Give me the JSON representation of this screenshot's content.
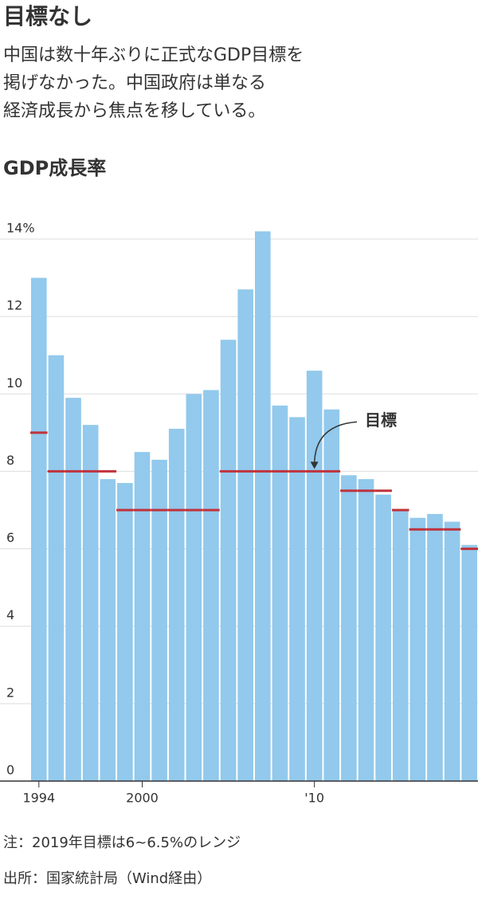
{
  "chart_data": {
    "type": "bar",
    "title": "目標なし",
    "subtitle": [
      "中国は数十年ぶりに正式なGDP目標を",
      "掲げなかった。中国政府は単なる",
      "経済成長から焦点を移している。"
    ],
    "chart_title": "GDP成長率",
    "annotation": "目標",
    "categories": [
      "1994",
      null,
      null,
      null,
      null,
      null,
      "2000",
      null,
      null,
      null,
      null,
      null,
      null,
      null,
      null,
      null,
      "'10",
      null,
      null,
      null,
      null,
      null,
      null,
      null,
      null,
      null
    ],
    "values": [
      13.0,
      11.0,
      9.9,
      9.2,
      7.8,
      7.7,
      8.5,
      8.3,
      9.1,
      10.0,
      10.1,
      11.4,
      12.7,
      14.2,
      9.7,
      9.4,
      10.6,
      9.6,
      7.9,
      7.8,
      7.4,
      7.0,
      6.8,
      6.9,
      6.7,
      6.1
    ],
    "color": "#92c9ec",
    "target_values": [
      9,
      8,
      8,
      8,
      8,
      7,
      7,
      7,
      7,
      7,
      7,
      8,
      8,
      8,
      8,
      8,
      8,
      8,
      7.5,
      7.5,
      7.5,
      7,
      6.5,
      6.5,
      6.5,
      6
    ],
    "target_color": "#c0323c",
    "ylim": [
      0,
      14
    ],
    "yticks": [
      0,
      2,
      4,
      6,
      8,
      10,
      12,
      {
        "value": 14,
        "label": "14%"
      }
    ],
    "grid": true,
    "notes": [
      "注：2019年目標は6~6.5%のレンジ",
      "出所：国家統計局（Wind経由）"
    ]
  }
}
